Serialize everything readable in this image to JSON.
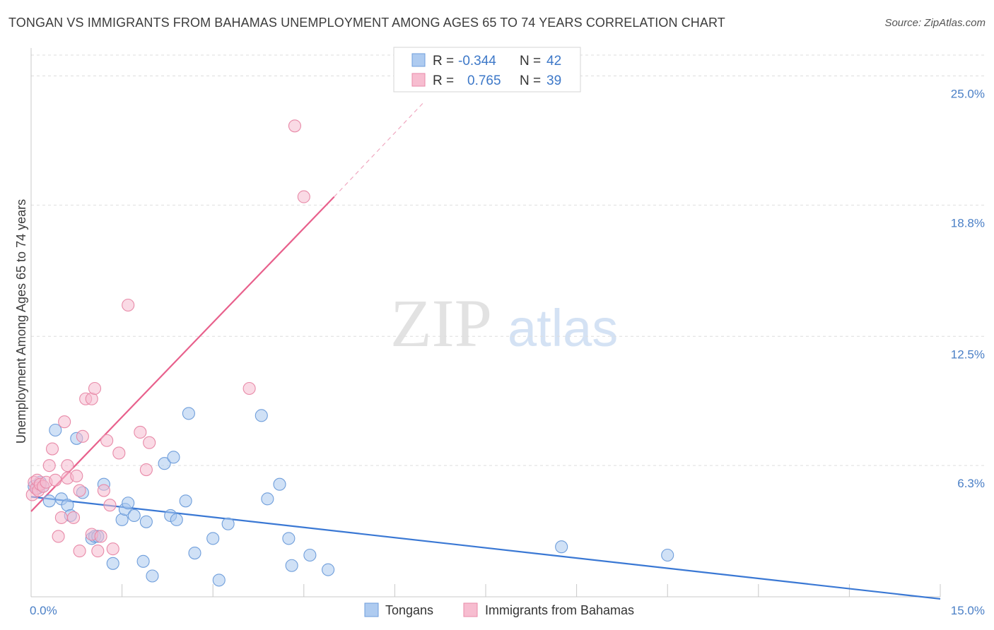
{
  "title": "TONGAN VS IMMIGRANTS FROM BAHAMAS UNEMPLOYMENT AMONG AGES 65 TO 74 YEARS CORRELATION CHART",
  "source": "Source: ZipAtlas.com",
  "watermark": {
    "zip": "ZIP",
    "atlas": "atlas"
  },
  "legend": {
    "r_label": "R =",
    "n_label": "N =",
    "rows": [
      {
        "r": "-0.344",
        "n": "42",
        "fill": "#aecbf0",
        "stroke": "#6f9edb"
      },
      {
        "r": "0.765",
        "n": "39",
        "fill": "#f7bdd0",
        "stroke": "#e88aa8"
      }
    ]
  },
  "colors": {
    "blue": "#3a78d4",
    "pink": "#e8608c",
    "blue_fill": "#a9c8ef",
    "pink_fill": "#f6bcd0",
    "tick": "#4a7fc6"
  },
  "chart_data": {
    "type": "scatter",
    "title": "TONGAN VS IMMIGRANTS FROM BAHAMAS UNEMPLOYMENT AMONG AGES 65 TO 74 YEARS CORRELATION CHART",
    "xlabel": "",
    "ylabel": "Unemployment Among Ages 65 to 74 years",
    "xlim": [
      0,
      15
    ],
    "ylim": [
      0,
      26
    ],
    "x_ticks": [
      0,
      1.5,
      3,
      4.5,
      6,
      7.5,
      9,
      10.5,
      12,
      13.5,
      15
    ],
    "x_tick_labels": {
      "min": "0.0%",
      "max": "15.0%"
    },
    "y_ticks": [
      {
        "value": 6.3,
        "label": "6.3%"
      },
      {
        "value": 12.5,
        "label": "12.5%"
      },
      {
        "value": 18.8,
        "label": "18.8%"
      },
      {
        "value": 25.0,
        "label": "25.0%"
      }
    ],
    "series": [
      {
        "name": "Tongans",
        "color": "#3a78d4",
        "trend": {
          "x0": 0,
          "y0": 4.8,
          "x1": 15,
          "y1": -0.1,
          "dashed_to": null
        },
        "points": [
          [
            0.05,
            5.3
          ],
          [
            0.1,
            5.2
          ],
          [
            0.15,
            5.5
          ],
          [
            0.2,
            5.3
          ],
          [
            0.3,
            4.6
          ],
          [
            0.4,
            8.0
          ],
          [
            0.5,
            4.7
          ],
          [
            0.6,
            4.4
          ],
          [
            0.65,
            3.9
          ],
          [
            0.75,
            7.6
          ],
          [
            0.85,
            5.0
          ],
          [
            1.0,
            2.8
          ],
          [
            1.05,
            2.9
          ],
          [
            1.1,
            2.9
          ],
          [
            1.2,
            5.4
          ],
          [
            1.35,
            1.6
          ],
          [
            1.5,
            3.7
          ],
          [
            1.55,
            4.2
          ],
          [
            1.6,
            4.5
          ],
          [
            1.7,
            3.9
          ],
          [
            1.85,
            1.7
          ],
          [
            1.9,
            3.6
          ],
          [
            2.0,
            1.0
          ],
          [
            2.2,
            6.4
          ],
          [
            2.35,
            6.7
          ],
          [
            2.3,
            3.9
          ],
          [
            2.4,
            3.7
          ],
          [
            2.6,
            8.8
          ],
          [
            2.55,
            4.6
          ],
          [
            2.7,
            2.1
          ],
          [
            3.0,
            2.8
          ],
          [
            3.1,
            0.8
          ],
          [
            3.25,
            3.5
          ],
          [
            3.8,
            8.7
          ],
          [
            3.9,
            4.7
          ],
          [
            4.1,
            5.4
          ],
          [
            4.25,
            2.8
          ],
          [
            4.3,
            1.5
          ],
          [
            4.6,
            2.0
          ],
          [
            4.9,
            1.3
          ],
          [
            8.75,
            2.4
          ],
          [
            10.5,
            2.0
          ]
        ]
      },
      {
        "name": "Immigrants from Bahamas",
        "color": "#e8608c",
        "trend": {
          "x0": 0,
          "y0": 4.1,
          "x1": 5.0,
          "y1": 19.2,
          "dashed_to": {
            "x": 6.5,
            "y": 23.8
          }
        },
        "points": [
          [
            0.02,
            4.9
          ],
          [
            0.05,
            5.5
          ],
          [
            0.08,
            5.2
          ],
          [
            0.1,
            5.6
          ],
          [
            0.12,
            5.1
          ],
          [
            0.15,
            5.4
          ],
          [
            0.2,
            5.3
          ],
          [
            0.25,
            5.5
          ],
          [
            0.3,
            6.3
          ],
          [
            0.35,
            7.1
          ],
          [
            0.4,
            5.6
          ],
          [
            0.45,
            2.9
          ],
          [
            0.5,
            3.8
          ],
          [
            0.55,
            8.4
          ],
          [
            0.6,
            6.3
          ],
          [
            0.6,
            5.7
          ],
          [
            0.7,
            3.8
          ],
          [
            0.75,
            5.8
          ],
          [
            0.8,
            5.1
          ],
          [
            0.8,
            2.2
          ],
          [
            0.85,
            7.7
          ],
          [
            0.9,
            9.5
          ],
          [
            1.0,
            9.5
          ],
          [
            1.0,
            3.0
          ],
          [
            1.05,
            10.0
          ],
          [
            1.1,
            2.2
          ],
          [
            1.15,
            2.9
          ],
          [
            1.2,
            5.1
          ],
          [
            1.25,
            7.5
          ],
          [
            1.3,
            4.4
          ],
          [
            1.35,
            2.3
          ],
          [
            1.45,
            6.9
          ],
          [
            1.6,
            14.0
          ],
          [
            1.8,
            7.9
          ],
          [
            1.9,
            6.1
          ],
          [
            1.95,
            7.4
          ],
          [
            3.6,
            10.0
          ],
          [
            4.35,
            22.6
          ],
          [
            4.5,
            19.2
          ]
        ]
      }
    ]
  },
  "bottom_legend": [
    {
      "label": "Tongans",
      "fill": "#aecbf0",
      "stroke": "#6f9edb"
    },
    {
      "label": "Immigrants from Bahamas",
      "fill": "#f7bdd0",
      "stroke": "#e88aa8"
    }
  ]
}
